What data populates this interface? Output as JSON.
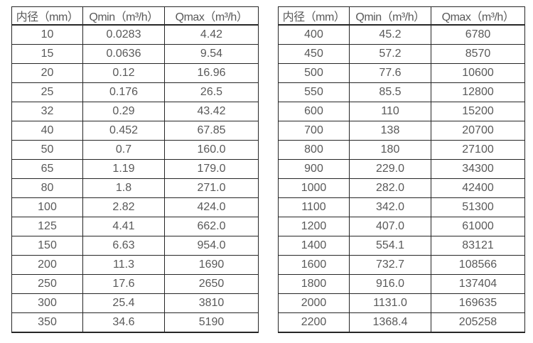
{
  "colors": {
    "background": "#ffffff",
    "border": "#262626",
    "text": "#595959"
  },
  "chart_data": [
    {
      "type": "table",
      "title": "",
      "columns": [
        "内径（mm）",
        "Qmin（m³/h）",
        "Qmax（m³/h）"
      ],
      "rows": [
        [
          "10",
          "0.0283",
          "4.42"
        ],
        [
          "15",
          "0.0636",
          "9.54"
        ],
        [
          "20",
          "0.12",
          "16.96"
        ],
        [
          "25",
          "0.176",
          "26.5"
        ],
        [
          "32",
          "0.29",
          "43.42"
        ],
        [
          "40",
          "0.452",
          "67.85"
        ],
        [
          "50",
          "0.7",
          "160.0"
        ],
        [
          "65",
          "1.19",
          "179.0"
        ],
        [
          "80",
          "1.8",
          "271.0"
        ],
        [
          "100",
          "2.82",
          "424.0"
        ],
        [
          "125",
          "4.41",
          "662.0"
        ],
        [
          "150",
          "6.63",
          "954.0"
        ],
        [
          "200",
          "11.3",
          "1690"
        ],
        [
          "250",
          "17.6",
          "2650"
        ],
        [
          "300",
          "25.4",
          "3810"
        ],
        [
          "350",
          "34.6",
          "5190"
        ]
      ]
    },
    {
      "type": "table",
      "title": "",
      "columns": [
        "内径（mm）",
        "Qmin（m³/h）",
        "Qmax（m³/h）"
      ],
      "rows": [
        [
          "400",
          "45.2",
          "6780"
        ],
        [
          "450",
          "57.2",
          "8570"
        ],
        [
          "500",
          "77.6",
          "10600"
        ],
        [
          "550",
          "85.5",
          "12800"
        ],
        [
          "600",
          "110",
          "15200"
        ],
        [
          "700",
          "138",
          "20700"
        ],
        [
          "800",
          "180",
          "27100"
        ],
        [
          "900",
          "229.0",
          "34300"
        ],
        [
          "1000",
          "282.0",
          "42400"
        ],
        [
          "1100",
          "342.0",
          "51300"
        ],
        [
          "1200",
          "407.0",
          "61000"
        ],
        [
          "1400",
          "554.1",
          "83121"
        ],
        [
          "1600",
          "732.7",
          "108566"
        ],
        [
          "1800",
          "916.0",
          "137404"
        ],
        [
          "2000",
          "1131.0",
          "169635"
        ],
        [
          "2200",
          "1368.4",
          "205258"
        ]
      ]
    }
  ]
}
